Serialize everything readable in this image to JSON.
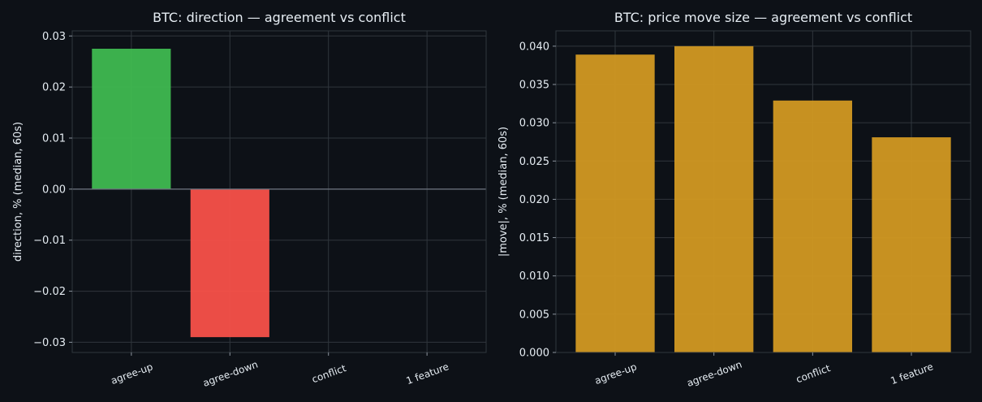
{
  "chart_data": [
    {
      "type": "bar",
      "title": "BTC: direction — agreement vs conflict",
      "xlabel": "",
      "ylabel": "direction, % (median, 60s)",
      "categories": [
        "agree-up",
        "agree-down",
        "conflict",
        "1 feature"
      ],
      "values": [
        0.0275,
        -0.029,
        0.0,
        0.0
      ],
      "colors": [
        "#3fb950",
        "#f85149",
        "#3fb950",
        "#3fb950"
      ],
      "ylim": [
        -0.032,
        0.031
      ],
      "yticks": [
        -0.03,
        -0.02,
        -0.01,
        0.0,
        0.01,
        0.02,
        0.03
      ],
      "ytick_labels": [
        "−0.03",
        "−0.02",
        "−0.01",
        "0.00",
        "0.01",
        "0.02",
        "0.03"
      ],
      "zero_line": true,
      "grid": true
    },
    {
      "type": "bar",
      "title": "BTC: price move size — agreement vs conflict",
      "xlabel": "",
      "ylabel": "|move|, % (median, 60s)",
      "categories": [
        "agree-up",
        "agree-down",
        "conflict",
        "1 feature"
      ],
      "values": [
        0.0389,
        0.04,
        0.0329,
        0.0281
      ],
      "colors": [
        "#d29922",
        "#d29922",
        "#d29922",
        "#d29922"
      ],
      "ylim": [
        0.0,
        0.042
      ],
      "yticks": [
        0.0,
        0.005,
        0.01,
        0.015,
        0.02,
        0.025,
        0.03,
        0.035,
        0.04
      ],
      "ytick_labels": [
        "0.000",
        "0.005",
        "0.010",
        "0.015",
        "0.020",
        "0.025",
        "0.030",
        "0.035",
        "0.040"
      ],
      "zero_line": false,
      "grid": true
    }
  ]
}
